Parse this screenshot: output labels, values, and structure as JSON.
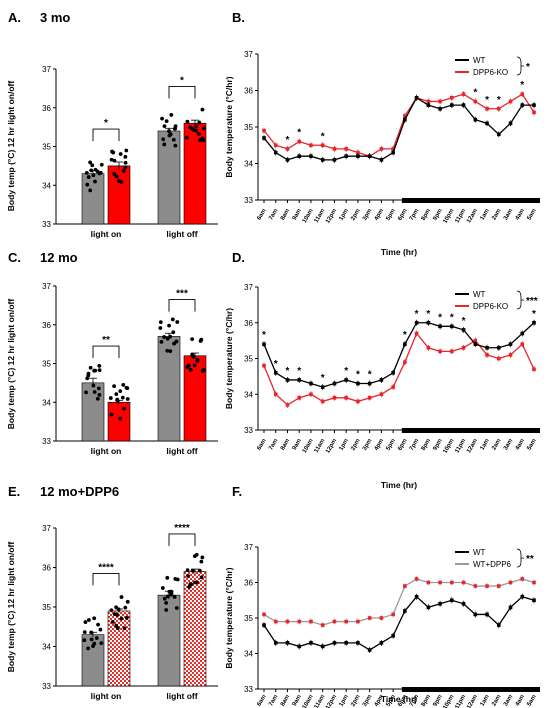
{
  "figure": {
    "panels": [
      {
        "letter": "A.",
        "title": "3 mo"
      },
      {
        "letter": "B.",
        "title": ""
      },
      {
        "letter": "C.",
        "title": "12 mo"
      },
      {
        "letter": "D.",
        "title": ""
      },
      {
        "letter": "E.",
        "title": "12 mo+DPP6"
      },
      {
        "letter": "F.",
        "title": ""
      }
    ]
  },
  "colors": {
    "wt": "#8c8c8c",
    "ko": "#ff0000",
    "dpp6_bar": "#e8302b",
    "wt_line": "#000000",
    "ko_line": "#e8252b",
    "dpp6_line": "#9a9a9a"
  },
  "chart_data": [
    {
      "panel": "A",
      "type": "bar",
      "ylabel": "Body temp (°C) 12 hr light on/off",
      "ylim": [
        33,
        37
      ],
      "yticks": [
        "33",
        "34",
        "35",
        "36",
        "37"
      ],
      "categories": [
        "light on",
        "light off"
      ],
      "series": [
        {
          "values": [
            34.3,
            35.4
          ]
        },
        {
          "values": [
            34.5,
            35.6
          ]
        }
      ],
      "errors": [
        [
          0.08,
          0.07
        ],
        [
          0.1,
          0.08
        ]
      ],
      "significance": [
        "*",
        "*"
      ],
      "pattern": "solid"
    },
    {
      "panel": "B",
      "type": "line",
      "ylabel": "Body temperature (°C/hr)",
      "xlabel": "Time (hr)",
      "ylim": [
        33,
        37
      ],
      "yticks": [
        "33",
        "34",
        "35",
        "36",
        "37"
      ],
      "x": [
        "6am",
        "7am",
        "8am",
        "9am",
        "10am",
        "11am",
        "12pm",
        "1pm",
        "2pm",
        "3pm",
        "4pm",
        "5pm",
        "6pm",
        "7pm",
        "8pm",
        "9pm",
        "10pm",
        "11pm",
        "12am",
        "1am",
        "2am",
        "3am",
        "4am",
        "5am"
      ],
      "series": [
        {
          "name": "WT",
          "values": [
            34.7,
            34.3,
            34.1,
            34.2,
            34.2,
            34.1,
            34.1,
            34.2,
            34.2,
            34.2,
            34.1,
            34.3,
            35.2,
            35.8,
            35.6,
            35.5,
            35.6,
            35.6,
            35.2,
            35.1,
            34.8,
            35.1,
            35.6,
            35.6
          ]
        },
        {
          "name": "DPP6-KO",
          "values": [
            34.9,
            34.5,
            34.4,
            34.6,
            34.5,
            34.5,
            34.4,
            34.4,
            34.3,
            34.2,
            34.4,
            34.4,
            35.3,
            35.8,
            35.7,
            35.7,
            35.8,
            35.9,
            35.7,
            35.5,
            35.5,
            35.7,
            35.9,
            35.4
          ]
        }
      ],
      "point_stars": [
        2,
        3,
        5,
        18,
        19,
        20,
        22
      ],
      "legend_sig": "*"
    },
    {
      "panel": "C",
      "type": "bar",
      "ylabel": "Body temp (°C) 12 hr light on/off",
      "ylim": [
        33,
        37
      ],
      "yticks": [
        "33",
        "34",
        "35",
        "36",
        "37"
      ],
      "categories": [
        "light on",
        "light off"
      ],
      "series": [
        {
          "values": [
            34.5,
            35.7
          ]
        },
        {
          "values": [
            34.0,
            35.2
          ]
        }
      ],
      "errors": [
        [
          0.12,
          0.08
        ],
        [
          0.05,
          0.07
        ]
      ],
      "significance": [
        "**",
        "***"
      ],
      "pattern": "solid"
    },
    {
      "panel": "D",
      "type": "line",
      "ylabel": "Body temperature (°C/hr)",
      "xlabel": "Time (hr)",
      "ylim": [
        33,
        37
      ],
      "yticks": [
        "33",
        "34",
        "35",
        "36",
        "37"
      ],
      "x": [
        "6am",
        "7am",
        "8am",
        "9am",
        "10am",
        "11am",
        "12pm",
        "1pm",
        "2pm",
        "3pm",
        "4pm",
        "5pm",
        "6pm",
        "7pm",
        "8pm",
        "9pm",
        "10pm",
        "11pm",
        "12am",
        "1am",
        "2am",
        "3am",
        "4am",
        "5am"
      ],
      "series": [
        {
          "name": "WT",
          "values": [
            35.4,
            34.6,
            34.4,
            34.4,
            34.3,
            34.2,
            34.3,
            34.4,
            34.3,
            34.3,
            34.4,
            34.6,
            35.4,
            36.0,
            36.0,
            35.9,
            35.9,
            35.8,
            35.4,
            35.3,
            35.3,
            35.4,
            35.7,
            36.0
          ]
        },
        {
          "name": "DPP6-KO",
          "values": [
            34.8,
            34.0,
            33.7,
            33.9,
            34.0,
            33.8,
            33.9,
            33.9,
            33.8,
            33.9,
            34.0,
            34.2,
            34.9,
            35.7,
            35.3,
            35.2,
            35.2,
            35.3,
            35.5,
            35.1,
            35.0,
            35.1,
            35.4,
            34.7
          ]
        }
      ],
      "point_stars": [
        0,
        1,
        2,
        3,
        5,
        7,
        8,
        9,
        12,
        13,
        14,
        15,
        16,
        17,
        23
      ],
      "legend_sig": "***"
    },
    {
      "panel": "E",
      "type": "bar",
      "ylabel": "Body temp (°C) 12 hr light on/off",
      "ylim": [
        33,
        37
      ],
      "yticks": [
        "33",
        "34",
        "35",
        "36",
        "37"
      ],
      "categories": [
        "light on",
        "light off"
      ],
      "series": [
        {
          "values": [
            34.3,
            35.3
          ]
        },
        {
          "values": [
            34.9,
            35.9
          ]
        }
      ],
      "errors": [
        [
          0.06,
          0.1
        ],
        [
          0.05,
          0.06
        ]
      ],
      "significance": [
        "****",
        "****"
      ],
      "pattern": "checkered"
    },
    {
      "panel": "F",
      "type": "line",
      "ylabel": "Body temperature (°C/hr)",
      "xlabel": "Time (hr)",
      "ylim": [
        33,
        37
      ],
      "yticks": [
        "33",
        "34",
        "35",
        "36",
        "37"
      ],
      "x": [
        "6am",
        "7am",
        "8am",
        "9am",
        "10am",
        "11am",
        "12pm",
        "1pm",
        "2pm",
        "3pm",
        "4pm",
        "5pm",
        "6pm",
        "7pm",
        "8pm",
        "9pm",
        "10pm",
        "11pm",
        "12am",
        "1am",
        "2am",
        "3am",
        "4am",
        "5am"
      ],
      "series": [
        {
          "name": "WT",
          "values": [
            34.8,
            34.3,
            34.3,
            34.2,
            34.3,
            34.2,
            34.3,
            34.3,
            34.3,
            34.1,
            34.3,
            34.5,
            35.2,
            35.6,
            35.3,
            35.4,
            35.5,
            35.4,
            35.1,
            35.1,
            34.8,
            35.3,
            35.6,
            35.5
          ]
        },
        {
          "name": "WT+DPP6",
          "values": [
            35.1,
            34.9,
            34.9,
            34.9,
            34.9,
            34.8,
            34.9,
            34.9,
            34.9,
            35.0,
            35.0,
            35.1,
            35.9,
            36.1,
            36.0,
            36.0,
            36.0,
            36.0,
            35.9,
            35.9,
            35.9,
            36.0,
            36.1,
            36.0
          ]
        }
      ],
      "point_stars": [],
      "legend_sig": "**"
    }
  ]
}
